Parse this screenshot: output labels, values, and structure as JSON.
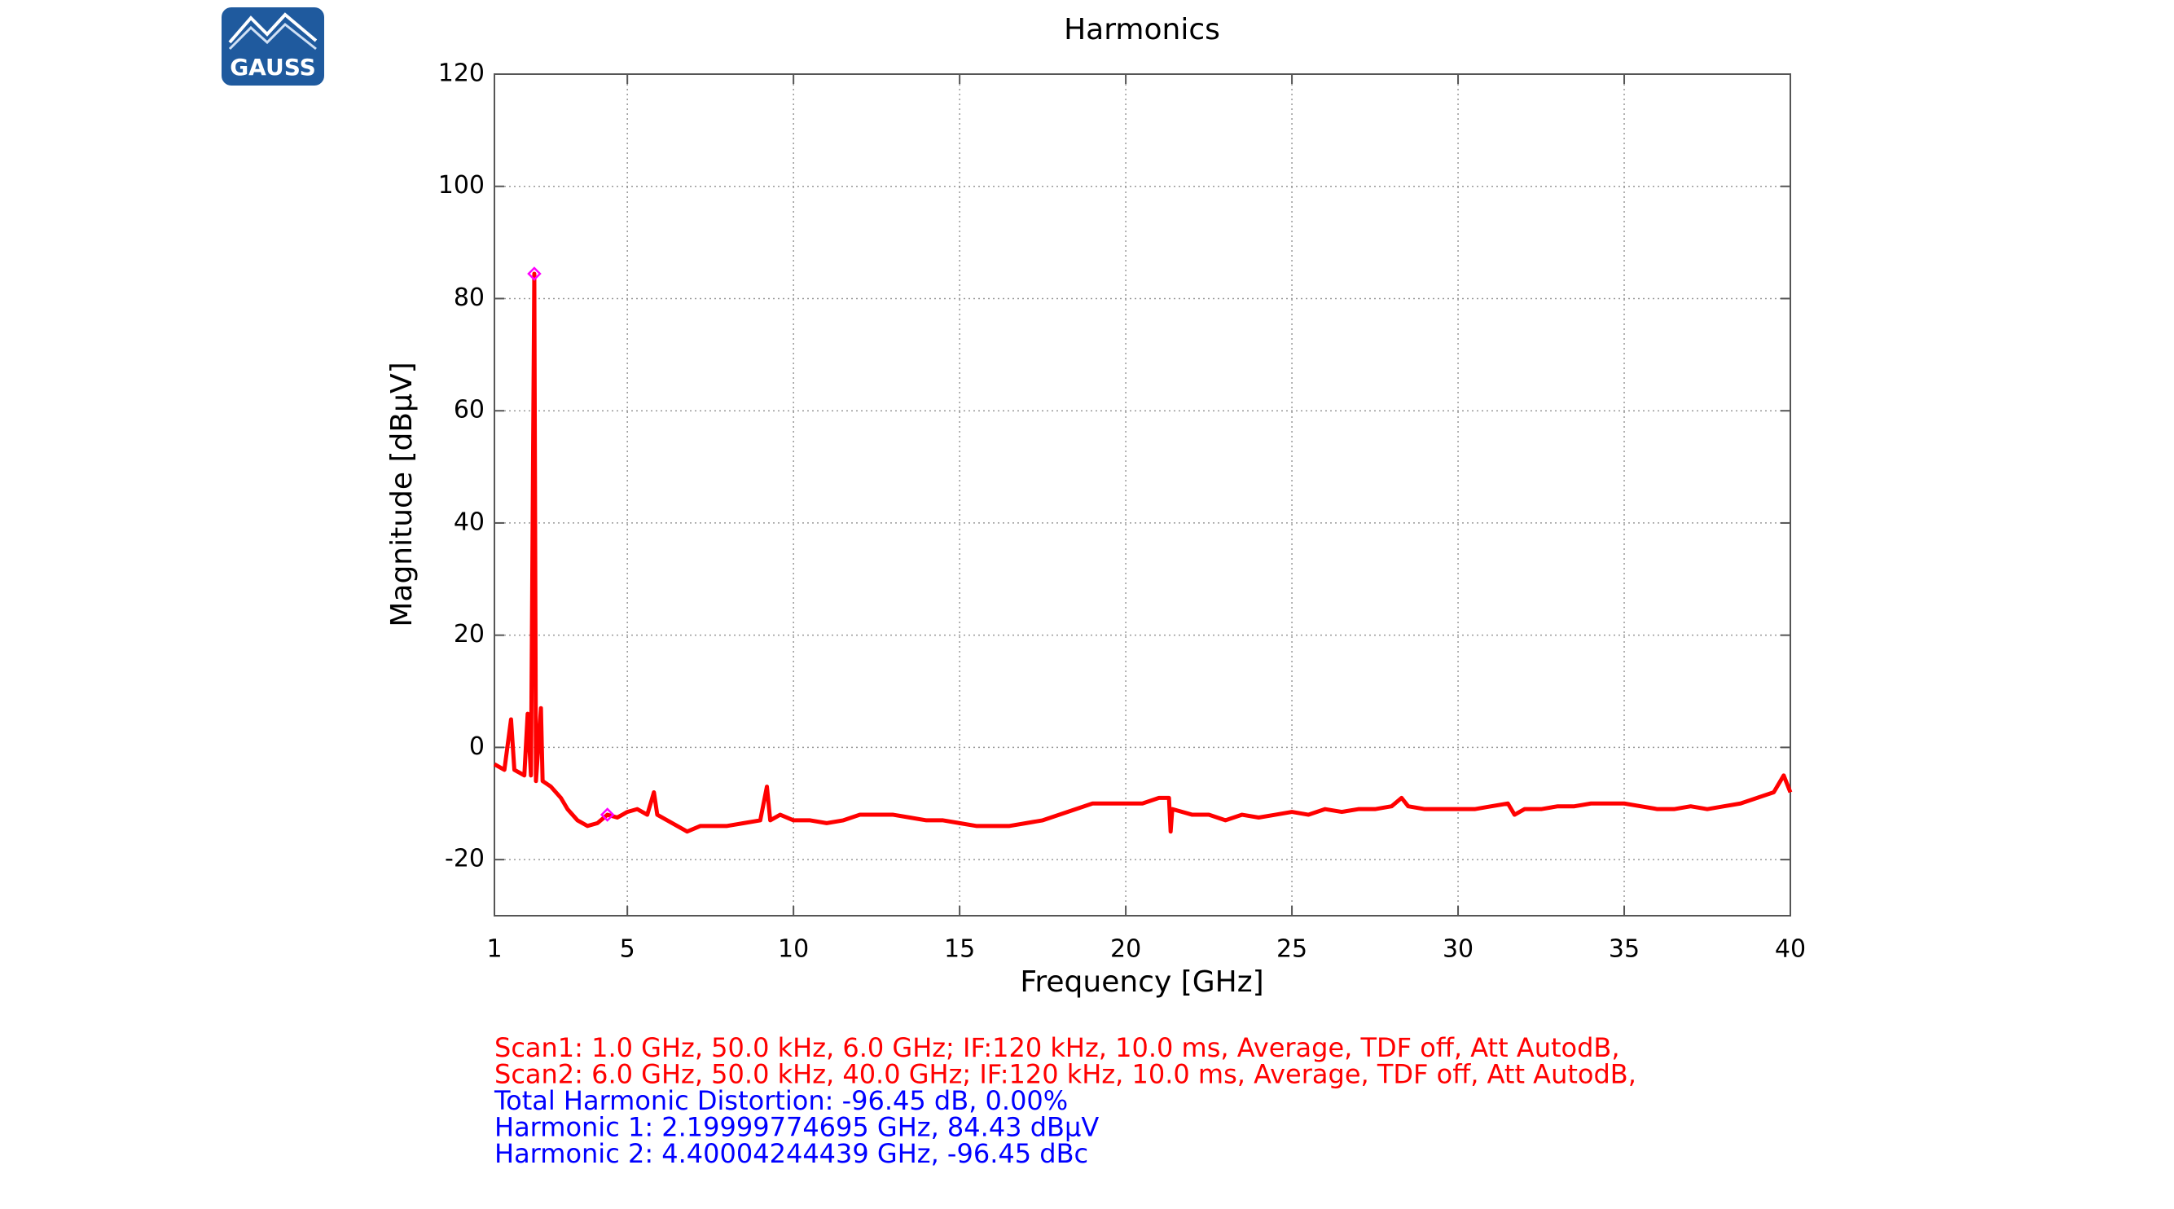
{
  "chart_data": {
    "type": "line",
    "title": "Harmonics",
    "xlabel": "Frequency [GHz]",
    "ylabel": "Magnitude [dBµV]",
    "xlim": [
      1,
      40
    ],
    "ylim": [
      -30,
      120
    ],
    "xticks": [
      1,
      5,
      10,
      15,
      20,
      25,
      30,
      35,
      40
    ],
    "yticks": [
      -20,
      0,
      20,
      40,
      60,
      80,
      100,
      120
    ],
    "grid": true,
    "series": [
      {
        "color": "#ff0000",
        "x": [
          1,
          1.3,
          1.5,
          1.6,
          1.9,
          2.0,
          2.1,
          2.2,
          2.25,
          2.4,
          2.45,
          2.7,
          3.0,
          3.2,
          3.5,
          3.8,
          4.1,
          4.4,
          4.7,
          5.0,
          5.3,
          5.6,
          5.8,
          5.9,
          6.2,
          6.5,
          6.8,
          7.2,
          7.6,
          8.0,
          8.5,
          9.0,
          9.2,
          9.3,
          9.6,
          10,
          10.5,
          11,
          11.5,
          12,
          12.5,
          13,
          13.5,
          14,
          14.5,
          15,
          15.5,
          16,
          16.5,
          17,
          17.5,
          18,
          18.5,
          19,
          19.5,
          20,
          20.5,
          21,
          21.3,
          21.35,
          21.4,
          22,
          22.5,
          23,
          23.5,
          24,
          24.5,
          25,
          25.5,
          26,
          26.5,
          27,
          27.5,
          28,
          28.3,
          28.5,
          29,
          29.5,
          30,
          30.5,
          31,
          31.5,
          31.7,
          32,
          32.5,
          33,
          33.5,
          34,
          34.5,
          35,
          35.5,
          36,
          36.5,
          37,
          37.5,
          38,
          38.5,
          39,
          39.5,
          39.8,
          40
        ],
        "values": [
          -3,
          -4,
          5,
          -4,
          -5,
          6,
          -5,
          84.43,
          -6,
          7,
          -6,
          -7,
          -9,
          -11,
          -13,
          -14,
          -13.5,
          -12,
          -12.5,
          -11.5,
          -11,
          -12,
          -8,
          -12,
          -13,
          -14,
          -15,
          -14,
          -14,
          -14,
          -13.5,
          -13,
          -7,
          -13,
          -12,
          -13,
          -13,
          -13.5,
          -13,
          -12,
          -12,
          -12,
          -12.5,
          -13,
          -13,
          -13.5,
          -14,
          -14,
          -14,
          -13.5,
          -13,
          -12,
          -11,
          -10,
          -10,
          -10,
          -10,
          -9,
          -9,
          -15,
          -11,
          -12,
          -12,
          -13,
          -12,
          -12.5,
          -12,
          -11.5,
          -12,
          -11,
          -11.5,
          -11,
          -11,
          -10.5,
          -9,
          -10.5,
          -11,
          -11,
          -11,
          -11,
          -10.5,
          -10,
          -12,
          -11,
          -11,
          -10.5,
          -10.5,
          -10,
          -10,
          -10,
          -10.5,
          -11,
          -11,
          -10.5,
          -11,
          -10.5,
          -10,
          -9,
          -8,
          -5,
          -8
        ]
      }
    ],
    "markers": {
      "color": "#ff00ff",
      "x": [
        2.2,
        4.4
      ],
      "values": [
        84.43,
        -12
      ]
    },
    "notes": [
      {
        "text": "Scan1: 1.0 GHz, 50.0 kHz, 6.0 GHz; IF:120 kHz, 10.0 ms, Average, TDF off, Att AutodB,",
        "color": "#ff0000"
      },
      {
        "text": "Scan2: 6.0 GHz, 50.0 kHz, 40.0 GHz; IF:120 kHz, 10.0 ms, Average, TDF off, Att AutodB,",
        "color": "#ff0000"
      },
      {
        "text": "Total Harmonic Distortion:  -96.45 dB, 0.00%",
        "color": "#0000ff"
      },
      {
        "text": "Harmonic 1: 2.19999774695 GHz, 84.43 dBµV",
        "color": "#0000ff"
      },
      {
        "text": "Harmonic 2: 4.40004244439 GHz, -96.45 dBc",
        "color": "#0000ff"
      }
    ]
  },
  "logo": {
    "text": "GAUSS"
  }
}
